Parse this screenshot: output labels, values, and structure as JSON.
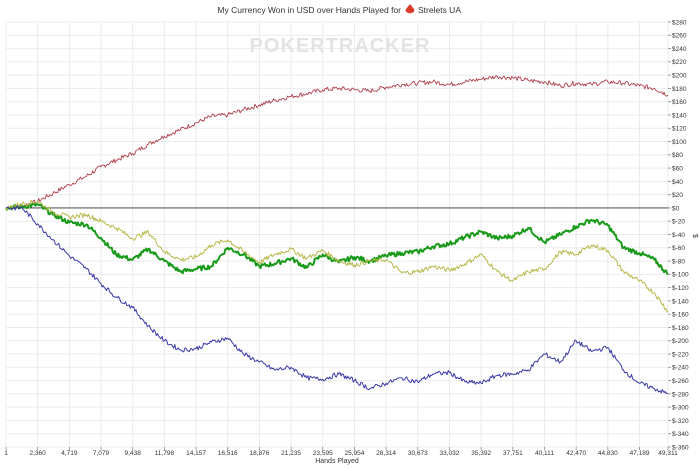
{
  "chart_data": {
    "type": "line",
    "title": "My Currency Won in USD over Hands Played for",
    "player_name": "Strelets UA",
    "watermark": "POKERTRACKER",
    "xlabel": "Hands Played",
    "ylabel": "$",
    "xlim": [
      1,
      49311
    ],
    "ylim": [
      -360,
      280
    ],
    "x_ticks": [
      1,
      2360,
      4719,
      7079,
      9438,
      11798,
      14157,
      16516,
      18876,
      21235,
      23595,
      25954,
      28314,
      30673,
      33032,
      35392,
      37751,
      40111,
      42470,
      44830,
      47189,
      49311
    ],
    "x_tick_labels": [
      "1",
      "2,360",
      "4,719",
      "7,079",
      "9,438",
      "11,798",
      "14,157",
      "16,516",
      "18,876",
      "21,235",
      "23,595",
      "25,954",
      "28,314",
      "30,673",
      "33,032",
      "35,392",
      "37,751",
      "40,111",
      "42,470",
      "44,830",
      "47,189",
      "49,311"
    ],
    "y_ticks": [
      280,
      260,
      240,
      220,
      200,
      180,
      160,
      140,
      120,
      100,
      80,
      60,
      40,
      20,
      0,
      -20,
      -40,
      -60,
      -80,
      -100,
      -120,
      -140,
      -160,
      -180,
      -200,
      -220,
      -240,
      -260,
      -280,
      -300,
      -320,
      -340,
      -360
    ],
    "y_tick_labels": [
      "$280",
      "$260",
      "$240",
      "$220",
      "$200",
      "$180",
      "$160",
      "$140",
      "$120",
      "$100",
      "$80",
      "$60",
      "$40",
      "$20",
      "$0",
      "$-20",
      "$-40",
      "$-60",
      "$-80",
      "$-100",
      "$-120",
      "$-140",
      "$-160",
      "$-180",
      "$-200",
      "$-220",
      "$-240",
      "$-260",
      "$-280",
      "$-300",
      "$-320",
      "$-340",
      "$-360"
    ],
    "grid": true,
    "series": [
      {
        "color": "#b0404a",
        "stroke": 0.9,
        "x": [
          1,
          1200,
          2360,
          3500,
          4719,
          6000,
          7079,
          8200,
          9438,
          10600,
          11798,
          13000,
          14157,
          15300,
          16516,
          17700,
          18876,
          20000,
          21235,
          22400,
          23595,
          24800,
          25954,
          27100,
          28314,
          29500,
          30673,
          31800,
          33032,
          34200,
          35392,
          36600,
          37751,
          38900,
          40111,
          41300,
          42470,
          43600,
          44830,
          46000,
          47189,
          48300,
          49311
        ],
        "values": [
          0,
          3,
          10,
          22,
          35,
          48,
          62,
          72,
          82,
          96,
          108,
          118,
          128,
          138,
          140,
          148,
          155,
          162,
          168,
          172,
          178,
          180,
          178,
          176,
          182,
          186,
          188,
          190,
          186,
          190,
          194,
          198,
          196,
          192,
          190,
          184,
          188,
          186,
          190,
          188,
          184,
          180,
          170
        ]
      },
      {
        "color": "#1a9a1a",
        "stroke": 2.0,
        "x": [
          1,
          1200,
          2360,
          3500,
          4719,
          6000,
          7079,
          8200,
          9438,
          10600,
          11798,
          13000,
          14157,
          15300,
          16516,
          17700,
          18876,
          20000,
          21235,
          22400,
          23595,
          24800,
          25954,
          27100,
          28314,
          29500,
          30673,
          31800,
          33032,
          34200,
          35392,
          36600,
          37751,
          38900,
          40111,
          41300,
          42470,
          43600,
          44830,
          46000,
          47189,
          48300,
          49311
        ],
        "values": [
          0,
          2,
          5,
          -10,
          -22,
          -25,
          -45,
          -70,
          -78,
          -62,
          -80,
          -96,
          -92,
          -88,
          -60,
          -70,
          -88,
          -84,
          -76,
          -90,
          -70,
          -82,
          -74,
          -80,
          -72,
          -68,
          -66,
          -58,
          -54,
          -44,
          -36,
          -46,
          -42,
          -30,
          -52,
          -40,
          -28,
          -18,
          -26,
          -60,
          -68,
          -78,
          -100
        ]
      },
      {
        "color": "#b8b84a",
        "stroke": 1.0,
        "x": [
          1,
          1200,
          2360,
          3500,
          4719,
          6000,
          7079,
          8200,
          9438,
          10600,
          11798,
          13000,
          14157,
          15300,
          16516,
          17700,
          18876,
          20000,
          21235,
          22400,
          23595,
          24800,
          25954,
          27100,
          28314,
          29500,
          30673,
          31800,
          33032,
          34200,
          35392,
          36600,
          37751,
          38900,
          40111,
          41300,
          42470,
          43600,
          44830,
          46000,
          47189,
          48300,
          49311
        ],
        "values": [
          0,
          6,
          10,
          -6,
          -14,
          -10,
          -20,
          -30,
          -46,
          -36,
          -66,
          -78,
          -74,
          -56,
          -48,
          -66,
          -82,
          -70,
          -62,
          -76,
          -64,
          -80,
          -86,
          -80,
          -78,
          -98,
          -96,
          -88,
          -94,
          -84,
          -70,
          -96,
          -110,
          -96,
          -92,
          -66,
          -70,
          -56,
          -64,
          -96,
          -110,
          -128,
          -156
        ]
      },
      {
        "color": "#3a3aa8",
        "stroke": 1.0,
        "x": [
          1,
          1200,
          2360,
          3500,
          4719,
          6000,
          7079,
          8200,
          9438,
          10600,
          11798,
          13000,
          14157,
          15300,
          16516,
          17700,
          18876,
          20000,
          21235,
          22400,
          23595,
          24800,
          25954,
          27100,
          28314,
          29500,
          30673,
          31800,
          33032,
          34200,
          35392,
          36600,
          37751,
          38900,
          40111,
          41300,
          42470,
          43600,
          44830,
          46000,
          47189,
          48300,
          49311
        ],
        "values": [
          0,
          0,
          -24,
          -48,
          -72,
          -92,
          -114,
          -134,
          -150,
          -178,
          -200,
          -214,
          -212,
          -202,
          -196,
          -220,
          -232,
          -244,
          -240,
          -256,
          -258,
          -250,
          -260,
          -272,
          -264,
          -256,
          -262,
          -250,
          -248,
          -262,
          -264,
          -252,
          -250,
          -244,
          -220,
          -232,
          -200,
          -216,
          -210,
          -244,
          -264,
          -272,
          -280
        ]
      }
    ]
  }
}
